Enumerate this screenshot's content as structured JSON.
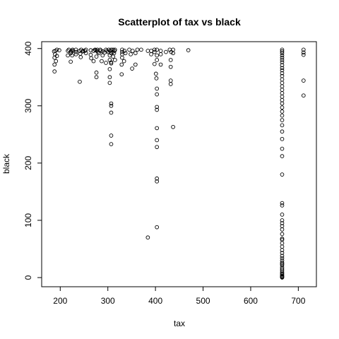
{
  "chart_data": {
    "type": "scatter",
    "title": "Scatterplot of tax vs black",
    "xlabel": "tax",
    "ylabel": "black",
    "xlim": [
      161,
      738
    ],
    "ylim": [
      -16,
      412
    ],
    "xticks": [
      200,
      300,
      400,
      500,
      600,
      700
    ],
    "yticks": [
      0,
      100,
      200,
      300,
      400
    ],
    "grid": false,
    "legend": "none",
    "series": [
      {
        "points": [
          [
            187,
            395
          ],
          [
            188,
            384
          ],
          [
            188,
            372
          ],
          [
            188,
            360
          ],
          [
            189,
            390
          ],
          [
            190,
            396
          ],
          [
            191,
            378
          ],
          [
            193,
            387
          ],
          [
            193,
            398
          ],
          [
            198,
            397
          ],
          [
            216,
            396
          ],
          [
            216,
            388
          ],
          [
            218,
            398
          ],
          [
            222,
            377
          ],
          [
            222,
            392
          ],
          [
            223,
            394
          ],
          [
            224,
            396
          ],
          [
            225,
            388
          ],
          [
            226,
            398
          ],
          [
            227,
            396
          ],
          [
            233,
            394
          ],
          [
            233,
            390
          ],
          [
            233,
            398
          ],
          [
            241,
            396
          ],
          [
            241,
            342
          ],
          [
            242,
            391
          ],
          [
            243,
            385
          ],
          [
            244,
            398
          ],
          [
            247,
            395
          ],
          [
            248,
            396
          ],
          [
            252,
            396
          ],
          [
            254,
            398
          ],
          [
            254,
            392
          ],
          [
            264,
            397
          ],
          [
            264,
            389
          ],
          [
            265,
            383
          ],
          [
            270,
            396
          ],
          [
            270,
            378
          ],
          [
            273,
            398
          ],
          [
            274,
            397
          ],
          [
            276,
            358
          ],
          [
            276,
            350
          ],
          [
            276,
            386
          ],
          [
            277,
            396
          ],
          [
            278,
            398
          ],
          [
            279,
            394
          ],
          [
            281,
            392
          ],
          [
            284,
            398
          ],
          [
            285,
            396
          ],
          [
            287,
            378
          ],
          [
            289,
            395
          ],
          [
            289,
            388
          ],
          [
            293,
            393
          ],
          [
            296,
            398
          ],
          [
            296,
            375
          ],
          [
            298,
            396
          ],
          [
            300,
            394
          ],
          [
            302,
            398
          ],
          [
            304,
            380
          ],
          [
            304,
            364
          ],
          [
            304,
            350
          ],
          [
            304,
            340
          ],
          [
            304,
            388
          ],
          [
            305,
            396
          ],
          [
            307,
            398
          ],
          [
            307,
            374
          ],
          [
            307,
            304
          ],
          [
            307,
            300
          ],
          [
            307,
            288
          ],
          [
            307,
            248
          ],
          [
            307,
            233
          ],
          [
            307,
            392
          ],
          [
            307,
            376
          ],
          [
            310,
            394
          ],
          [
            311,
            398
          ],
          [
            311,
            386
          ],
          [
            313,
            392
          ],
          [
            314,
            396
          ],
          [
            315,
            398
          ],
          [
            315,
            380
          ],
          [
            329,
            372
          ],
          [
            329,
            355
          ],
          [
            330,
            390
          ],
          [
            330,
            398
          ],
          [
            330,
            384
          ],
          [
            330,
            394
          ],
          [
            334,
            378
          ],
          [
            335,
            396
          ],
          [
            337,
            392
          ],
          [
            345,
            398
          ],
          [
            348,
            390
          ],
          [
            351,
            365
          ],
          [
            352,
            396
          ],
          [
            358,
            372
          ],
          [
            358,
            392
          ],
          [
            362,
            398
          ],
          [
            370,
            398
          ],
          [
            384,
            396
          ],
          [
            384,
            70
          ],
          [
            391,
            396
          ],
          [
            391,
            390
          ],
          [
            398,
            394
          ],
          [
            398,
            398
          ],
          [
            398,
            373
          ],
          [
            401,
            356
          ],
          [
            402,
            348
          ],
          [
            403,
            388
          ],
          [
            403,
            330
          ],
          [
            403,
            320
          ],
          [
            403,
            298
          ],
          [
            403,
            293
          ],
          [
            403,
            261
          ],
          [
            403,
            240
          ],
          [
            403,
            228
          ],
          [
            403,
            173
          ],
          [
            403,
            168
          ],
          [
            403,
            88
          ],
          [
            403,
            398
          ],
          [
            403,
            380
          ],
          [
            411,
            372
          ],
          [
            411,
            396
          ],
          [
            411,
            390
          ],
          [
            422,
            394
          ],
          [
            430,
            398
          ],
          [
            432,
            380
          ],
          [
            432,
            368
          ],
          [
            432,
            344
          ],
          [
            432,
            338
          ],
          [
            433,
            394
          ],
          [
            437,
            398
          ],
          [
            437,
            392
          ],
          [
            437,
            263
          ],
          [
            469,
            397
          ],
          [
            666,
            398
          ],
          [
            666,
            395
          ],
          [
            666,
            392
          ],
          [
            666,
            388
          ],
          [
            666,
            384
          ],
          [
            666,
            380
          ],
          [
            666,
            376
          ],
          [
            666,
            371
          ],
          [
            666,
            366
          ],
          [
            666,
            362
          ],
          [
            666,
            357
          ],
          [
            666,
            352
          ],
          [
            666,
            346
          ],
          [
            666,
            340
          ],
          [
            666,
            334
          ],
          [
            666,
            328
          ],
          [
            666,
            322
          ],
          [
            666,
            316
          ],
          [
            666,
            310
          ],
          [
            666,
            304
          ],
          [
            666,
            297
          ],
          [
            666,
            290
          ],
          [
            666,
            283
          ],
          [
            666,
            275
          ],
          [
            666,
            266
          ],
          [
            666,
            255
          ],
          [
            666,
            242
          ],
          [
            666,
            225
          ],
          [
            666,
            212
          ],
          [
            666,
            180
          ],
          [
            666,
            130
          ],
          [
            666,
            126
          ],
          [
            666,
            110
          ],
          [
            666,
            100
          ],
          [
            666,
            95
          ],
          [
            666,
            90
          ],
          [
            666,
            84
          ],
          [
            666,
            76
          ],
          [
            666,
            68
          ],
          [
            666,
            60
          ],
          [
            666,
            54
          ],
          [
            666,
            48
          ],
          [
            666,
            43
          ],
          [
            666,
            38
          ],
          [
            666,
            34
          ],
          [
            666,
            30
          ],
          [
            666,
            26
          ],
          [
            666,
            22
          ],
          [
            666,
            18
          ],
          [
            666,
            15
          ],
          [
            666,
            12
          ],
          [
            666,
            9
          ],
          [
            666,
            7
          ],
          [
            666,
            5
          ],
          [
            666,
            3
          ],
          [
            666,
            2
          ],
          [
            666,
            1
          ],
          [
            666,
            0
          ],
          [
            666,
            24
          ],
          [
            666,
            66
          ],
          [
            711,
            398
          ],
          [
            711,
            393
          ],
          [
            711,
            389
          ],
          [
            711,
            344
          ],
          [
            711,
            318
          ]
        ]
      }
    ]
  }
}
